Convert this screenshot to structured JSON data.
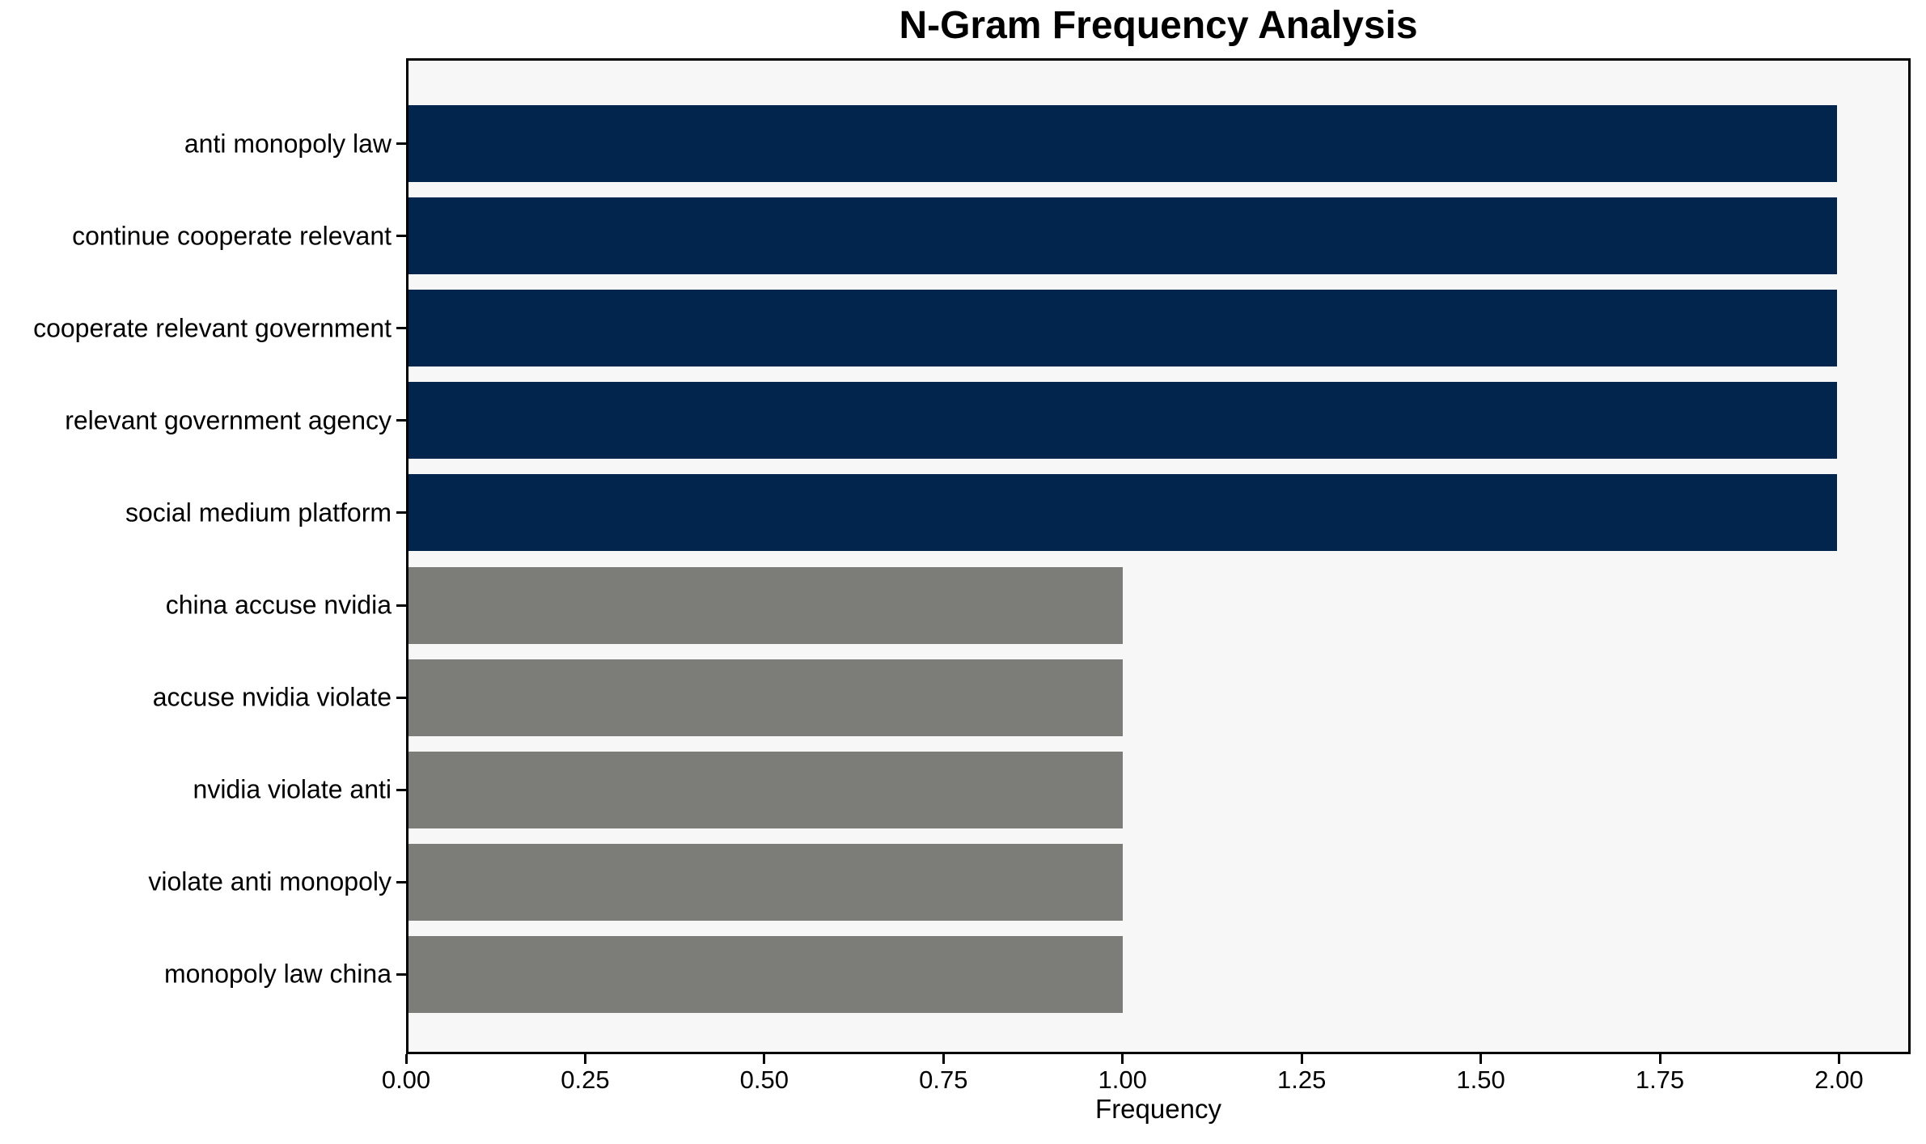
{
  "chart_data": {
    "type": "bar",
    "orientation": "horizontal",
    "title": "N-Gram Frequency Analysis",
    "xlabel": "Frequency",
    "ylabel": "",
    "categories": [
      "anti monopoly law",
      "continue cooperate relevant",
      "cooperate relevant government",
      "relevant government agency",
      "social medium platform",
      "china accuse nvidia",
      "accuse nvidia violate",
      "nvidia violate anti",
      "violate anti monopoly",
      "monopoly law china"
    ],
    "values": [
      2,
      2,
      2,
      2,
      2,
      1,
      1,
      1,
      1,
      1
    ],
    "bar_colors": [
      "#02254d",
      "#02254d",
      "#02254d",
      "#02254d",
      "#02254d",
      "#7c7c79",
      "#7c7c79",
      "#7c7c79",
      "#7c7c79",
      "#7c7c79"
    ],
    "xlim": [
      0,
      2.1
    ],
    "x_tick_values": [
      0,
      0.25,
      0.5,
      0.75,
      1.0,
      1.25,
      1.5,
      1.75,
      2.0
    ],
    "x_tick_labels": [
      "0.00",
      "0.25",
      "0.50",
      "0.75",
      "1.00",
      "1.25",
      "1.50",
      "1.75",
      "2.00"
    ],
    "grid": false,
    "legend": null
  },
  "colors": {
    "navy_bar": "#02254d",
    "gray_bar": "#7c7c79",
    "plot_background": "#f7f7f8",
    "figure_background": "#ffffff",
    "spine": "#000000",
    "text": "#000000"
  }
}
